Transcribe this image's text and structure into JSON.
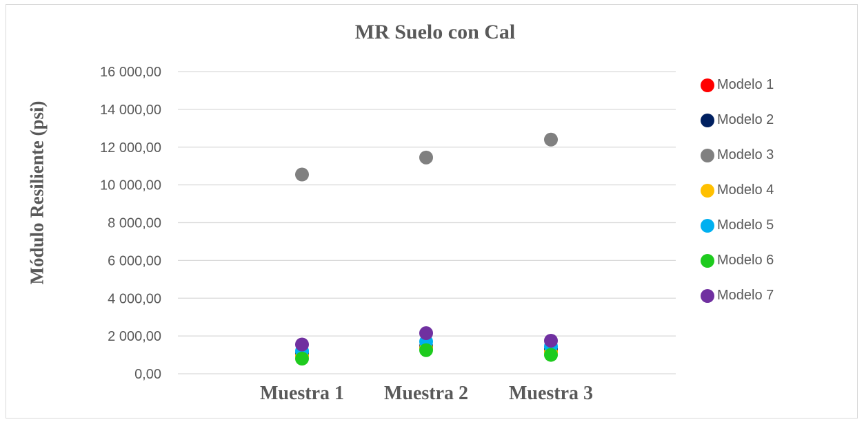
{
  "chart_data": {
    "type": "scatter",
    "title": "MR Suelo con Cal",
    "xlabel": "",
    "ylabel": "Módulo Resiliente (psi)",
    "categories": [
      "Muestra 1",
      "Muestra 2",
      "Muestra 3"
    ],
    "ylim": [
      0,
      16000
    ],
    "yticks": [
      0,
      2000,
      4000,
      6000,
      8000,
      10000,
      12000,
      14000,
      16000
    ],
    "ytick_labels": [
      "0,00",
      "2 000,00",
      "4 000,00",
      "6 000,00",
      "8 000,00",
      "10 000,00",
      "12 000,00",
      "14 000,00",
      "16 000,00"
    ],
    "grid": "horizontal",
    "legend_position": "right",
    "series": [
      {
        "name": "Modelo 1",
        "color": "#ff0000",
        "values": [
          1000,
          1400,
          1200
        ]
      },
      {
        "name": "Modelo 2",
        "color": "#002060",
        "values": [
          1050,
          1450,
          1300
        ]
      },
      {
        "name": "Modelo 3",
        "color": "#808080",
        "values": [
          10550,
          11450,
          12400
        ]
      },
      {
        "name": "Modelo 4",
        "color": "#ffc000",
        "values": [
          950,
          1350,
          1150
        ]
      },
      {
        "name": "Modelo 5",
        "color": "#00b0f0",
        "values": [
          1200,
          1700,
          1450
        ]
      },
      {
        "name": "Modelo 6",
        "color": "#1ecb1e",
        "values": [
          800,
          1250,
          1000
        ]
      },
      {
        "name": "Modelo 7",
        "color": "#7030a0",
        "values": [
          1550,
          2150,
          1750
        ]
      }
    ]
  }
}
